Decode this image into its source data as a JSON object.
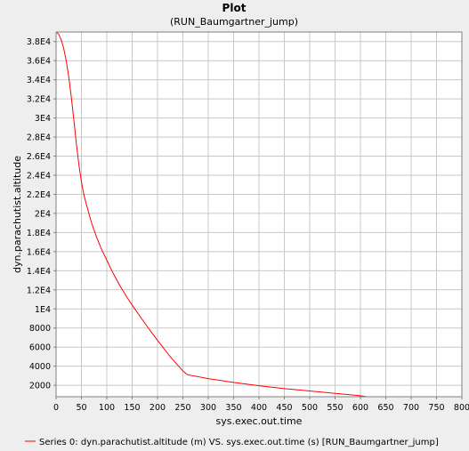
{
  "window": {
    "background": "#eeeeee"
  },
  "chart_data": {
    "type": "line",
    "title": "Plot",
    "subtitle": "(RUN_Baumgartner_jump)",
    "xlabel": "sys.exec.out.time",
    "ylabel": "dyn.parachutist.altitude",
    "xlim": [
      0,
      800
    ],
    "ylim": [
      800,
      39000
    ],
    "x_ticks": [
      0,
      50,
      100,
      150,
      200,
      250,
      300,
      350,
      400,
      450,
      500,
      550,
      600,
      650,
      700,
      750,
      800
    ],
    "x_tick_labels": [
      "0",
      "50",
      "100",
      "150",
      "200",
      "250",
      "300",
      "350",
      "400",
      "450",
      "500",
      "550",
      "600",
      "650",
      "700",
      "750",
      "800"
    ],
    "y_ticks": [
      2000,
      4000,
      6000,
      8000,
      10000,
      12000,
      14000,
      16000,
      18000,
      20000,
      22000,
      24000,
      26000,
      28000,
      30000,
      32000,
      34000,
      36000,
      38000
    ],
    "y_tick_labels": [
      "2000",
      "4000",
      "6000",
      "8000",
      "1E4",
      "1.2E4",
      "1.4E4",
      "1.6E4",
      "1.8E4",
      "2E4",
      "2.2E4",
      "2.4E4",
      "2.6E4",
      "2.8E4",
      "3E4",
      "3.2E4",
      "3.4E4",
      "3.6E4",
      "3.8E4"
    ],
    "grid": true,
    "legend_position": "bottom",
    "plot_background": "#ffffff",
    "grid_color": "#c8c8c8",
    "series": [
      {
        "name": "Series 0: dyn.parachutist.altitude (m) VS. sys.exec.out.time (s) [RUN_Baumgartner_jump]",
        "color": "#ff0000",
        "x": [
          0,
          5,
          10,
          15,
          20,
          25,
          30,
          35,
          40,
          45,
          50,
          55,
          60,
          70,
          80,
          90,
          100,
          110,
          125,
          140,
          150,
          175,
          200,
          225,
          250,
          258,
          260,
          300,
          350,
          400,
          450,
          500,
          550,
          600,
          612
        ],
        "y": [
          39000,
          38800,
          38200,
          37300,
          36000,
          34300,
          32200,
          29800,
          27300,
          25100,
          23300,
          21900,
          20900,
          19000,
          17500,
          16200,
          15100,
          14000,
          12500,
          11200,
          10400,
          8500,
          6700,
          5000,
          3500,
          3150,
          3100,
          2700,
          2300,
          1950,
          1650,
          1400,
          1150,
          900,
          800
        ]
      }
    ]
  }
}
